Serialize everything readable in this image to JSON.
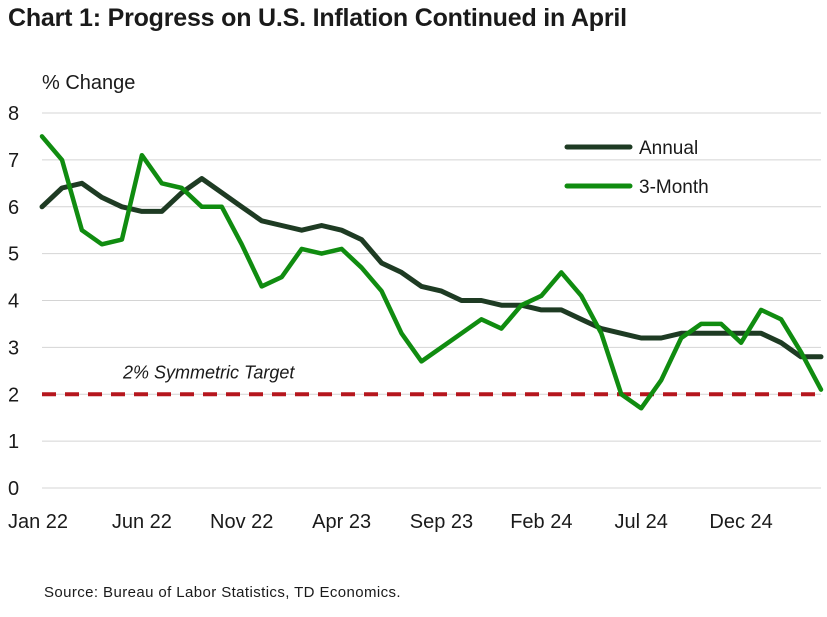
{
  "chart_data": {
    "type": "line",
    "title": "Chart 1: Progress on U.S. Inflation Continued in April",
    "ylabel": "% Change",
    "xlabel": "",
    "ylim": [
      0,
      8
    ],
    "yticks": [
      0,
      1,
      2,
      3,
      4,
      5,
      6,
      7,
      8
    ],
    "grid": true,
    "legend": "top-right",
    "x_tick_labels": [
      "Jan 22",
      "Jun 22",
      "Nov 22",
      "Apr 23",
      "Sep 23",
      "Feb 24",
      "Jul 24",
      "Dec 24"
    ],
    "x_tick_indices": [
      0,
      5,
      10,
      15,
      20,
      25,
      30,
      35
    ],
    "n_points": 40,
    "series": [
      {
        "name": "Annual",
        "color": "#1e3b23",
        "values": [
          6.0,
          6.4,
          6.5,
          6.2,
          6.0,
          5.9,
          5.9,
          6.3,
          6.6,
          6.3,
          6.0,
          5.7,
          5.6,
          5.5,
          5.6,
          5.5,
          5.3,
          4.8,
          4.6,
          4.3,
          4.2,
          4.0,
          4.0,
          3.9,
          3.9,
          3.8,
          3.8,
          3.6,
          3.4,
          3.3,
          3.2,
          3.2,
          3.3,
          3.3,
          3.3,
          3.3,
          3.3,
          3.1,
          2.8,
          2.8
        ]
      },
      {
        "name": "3-Month",
        "color": "#108c10",
        "values": [
          7.5,
          7.0,
          5.5,
          5.2,
          5.3,
          7.1,
          6.5,
          6.4,
          6.0,
          6.0,
          5.2,
          4.3,
          4.5,
          5.1,
          5.0,
          5.1,
          4.7,
          4.2,
          3.3,
          2.7,
          3.0,
          3.3,
          3.6,
          3.4,
          3.9,
          4.1,
          4.6,
          4.1,
          3.3,
          2.0,
          1.7,
          2.3,
          3.2,
          3.5,
          3.5,
          3.1,
          3.8,
          3.6,
          2.9,
          2.1
        ]
      }
    ],
    "reference_line": {
      "value": 2,
      "label": "2% Symmetric Target",
      "color": "#b5161d"
    }
  },
  "source": "Source: Bureau of Labor Statistics, TD Economics."
}
